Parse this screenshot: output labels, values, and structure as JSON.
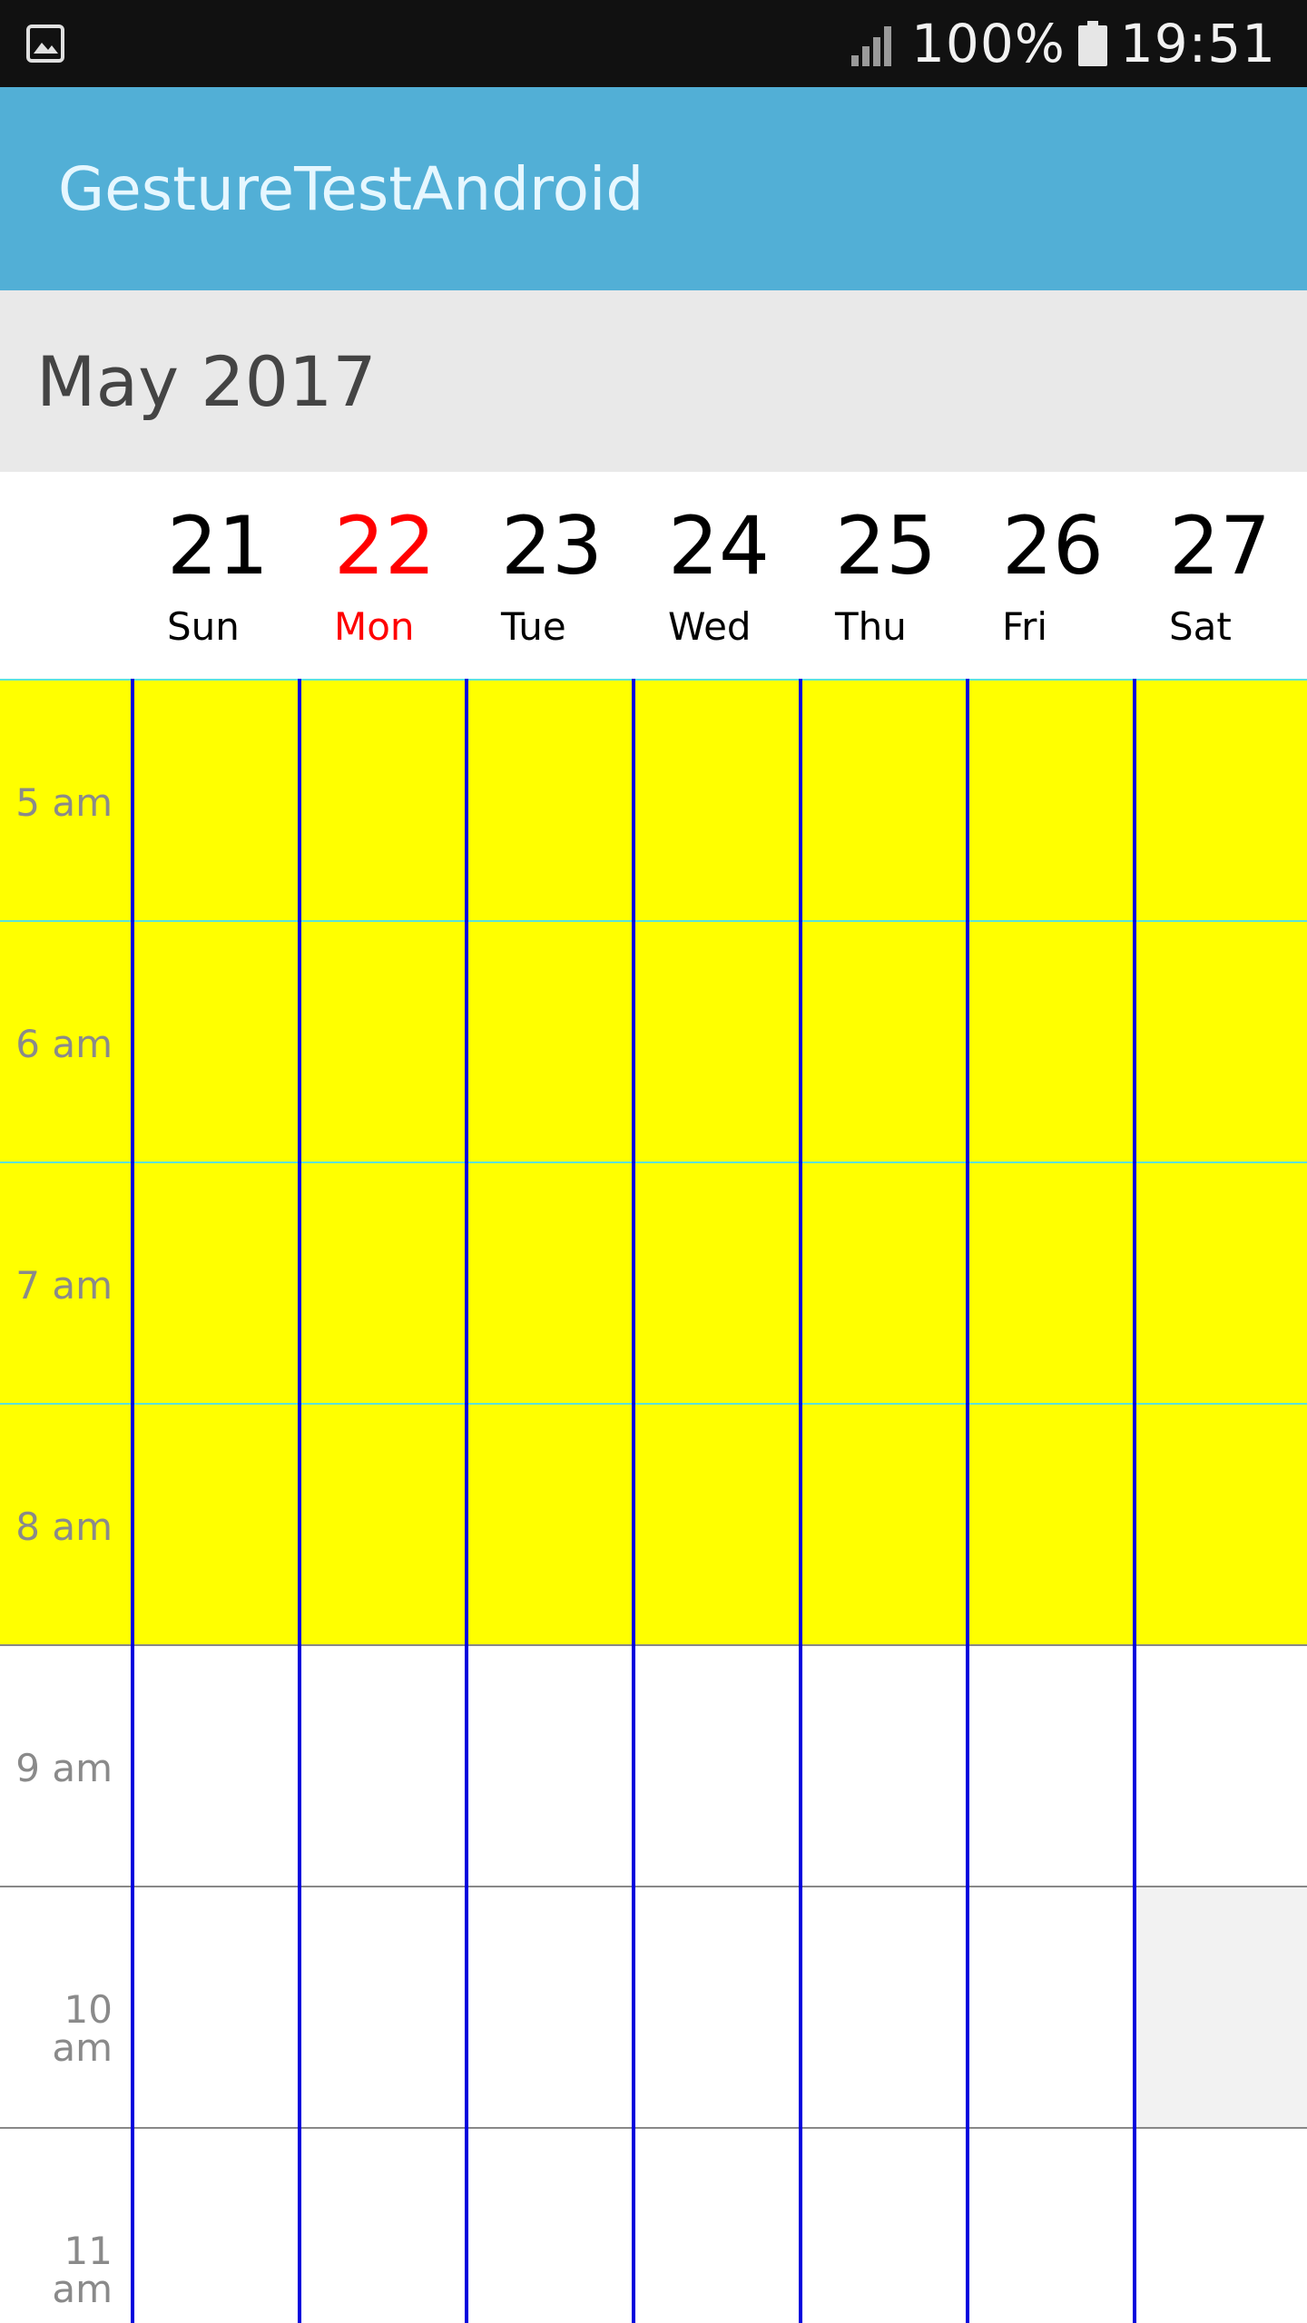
{
  "status_bar": {
    "battery_percent": "100%",
    "time": "19:51",
    "left_icon": "image-icon",
    "signal_icon": "signal-icon",
    "battery_icon": "battery-icon"
  },
  "app_bar": {
    "title": "GestureTestAndroid",
    "background_color": "#52afd6"
  },
  "calendar": {
    "month_label": "May 2017",
    "today_color": "#ff0000",
    "days": [
      {
        "number": "21",
        "name": "Sun",
        "today": false
      },
      {
        "number": "22",
        "name": "Mon",
        "today": true
      },
      {
        "number": "23",
        "name": "Tue",
        "today": false
      },
      {
        "number": "24",
        "name": "Wed",
        "today": false
      },
      {
        "number": "25",
        "name": "Thu",
        "today": false
      },
      {
        "number": "26",
        "name": "Fri",
        "today": false
      },
      {
        "number": "27",
        "name": "Sat",
        "today": false
      }
    ],
    "hours": [
      "5 am",
      "6 am",
      "7 am",
      "8 am",
      "9 am",
      "10 am",
      "11 am"
    ],
    "highlighted_hours": [
      "5 am",
      "6 am",
      "7 am",
      "8 am"
    ],
    "highlight_color": "#ffff00",
    "column_divider_color": "#0000dd",
    "highlight_row_divider_color": "#5de3d8",
    "row_divider_color": "#888888",
    "shaded_cell": {
      "day": "27",
      "hour": "10 am",
      "color": "#f2f2f2"
    }
  }
}
